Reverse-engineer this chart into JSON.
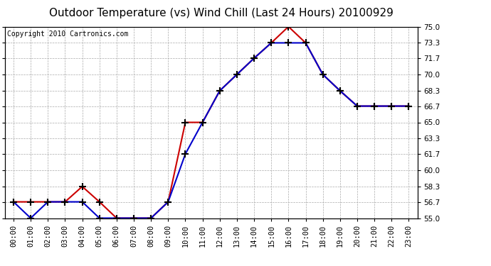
{
  "title": "Outdoor Temperature (vs) Wind Chill (Last 24 Hours) 20100929",
  "copyright": "Copyright 2010 Cartronics.com",
  "hours": [
    "00:00",
    "01:00",
    "02:00",
    "03:00",
    "04:00",
    "05:00",
    "06:00",
    "07:00",
    "08:00",
    "09:00",
    "10:00",
    "11:00",
    "12:00",
    "13:00",
    "14:00",
    "15:00",
    "16:00",
    "17:00",
    "18:00",
    "19:00",
    "20:00",
    "21:00",
    "22:00",
    "23:00"
  ],
  "temp": [
    56.7,
    56.7,
    56.7,
    56.7,
    58.3,
    56.7,
    55.0,
    55.0,
    55.0,
    56.7,
    65.0,
    65.0,
    68.3,
    70.0,
    71.7,
    73.3,
    75.0,
    73.3,
    70.0,
    68.3,
    66.7,
    66.7,
    66.7,
    66.7
  ],
  "wind_chill": [
    56.7,
    55.0,
    56.7,
    56.7,
    56.7,
    55.0,
    55.0,
    55.0,
    55.0,
    56.7,
    61.7,
    65.0,
    68.3,
    70.0,
    71.7,
    73.3,
    73.3,
    73.3,
    70.0,
    68.3,
    66.7,
    66.7,
    66.7,
    66.7
  ],
  "temp_color": "#cc0000",
  "wind_chill_color": "#0000cc",
  "bg_color": "#ffffff",
  "plot_bg_color": "#ffffff",
  "grid_color": "#aaaaaa",
  "ylim": [
    55.0,
    75.0
  ],
  "yticks": [
    55.0,
    56.7,
    58.3,
    60.0,
    61.7,
    63.3,
    65.0,
    66.7,
    68.3,
    70.0,
    71.7,
    73.3,
    75.0
  ],
  "title_fontsize": 11,
  "copyright_fontsize": 7,
  "tick_fontsize": 7.5
}
